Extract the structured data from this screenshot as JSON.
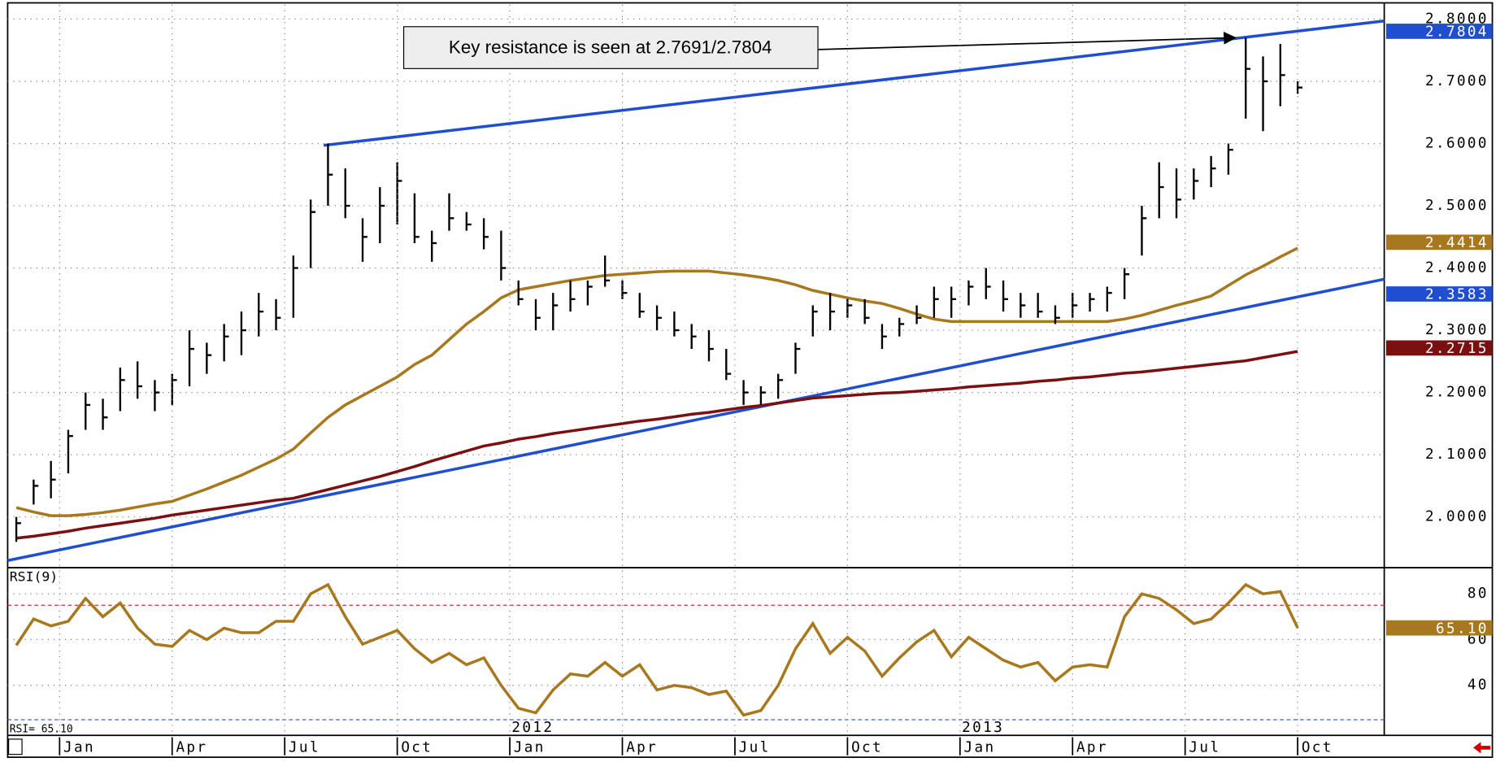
{
  "chart_data": [
    {
      "type": "ohlc",
      "x": [
        -5,
        -3,
        -1,
        1,
        3,
        5,
        7,
        9,
        11,
        13,
        15,
        17,
        19,
        21,
        23,
        25,
        27,
        29,
        31,
        33,
        35,
        37,
        39,
        41,
        43,
        45,
        47,
        49,
        51,
        53,
        55,
        57,
        59,
        61,
        63,
        65,
        67,
        69,
        71,
        73,
        75,
        77,
        79,
        81,
        83,
        85,
        87,
        89,
        91,
        93,
        95,
        97,
        99,
        101,
        103,
        105,
        107,
        109,
        111,
        113,
        115,
        117,
        119,
        121,
        123,
        125,
        127,
        129,
        131,
        133,
        135,
        137,
        139,
        141,
        143
      ],
      "high": [
        2.0,
        2.06,
        2.09,
        2.14,
        2.2,
        2.19,
        2.24,
        2.25,
        2.22,
        2.23,
        2.3,
        2.28,
        2.31,
        2.33,
        2.36,
        2.35,
        2.42,
        2.51,
        2.6,
        2.56,
        2.48,
        2.53,
        2.57,
        2.52,
        2.46,
        2.52,
        2.49,
        2.48,
        2.46,
        2.38,
        2.35,
        2.36,
        2.38,
        2.38,
        2.42,
        2.38,
        2.36,
        2.34,
        2.33,
        2.31,
        2.3,
        2.27,
        2.22,
        2.21,
        2.23,
        2.28,
        2.34,
        2.36,
        2.35,
        2.35,
        2.31,
        2.32,
        2.34,
        2.37,
        2.37,
        2.38,
        2.4,
        2.38,
        2.36,
        2.36,
        2.34,
        2.36,
        2.36,
        2.37,
        2.4,
        2.5,
        2.57,
        2.56,
        2.56,
        2.58,
        2.6,
        2.77,
        2.74,
        2.76,
        2.7
      ],
      "low": [
        1.96,
        2.02,
        2.03,
        2.07,
        2.14,
        2.14,
        2.17,
        2.19,
        2.17,
        2.18,
        2.21,
        2.23,
        2.25,
        2.26,
        2.29,
        2.3,
        2.32,
        2.4,
        2.5,
        2.48,
        2.41,
        2.44,
        2.47,
        2.44,
        2.41,
        2.46,
        2.46,
        2.43,
        2.38,
        2.34,
        2.3,
        2.3,
        2.33,
        2.34,
        2.37,
        2.35,
        2.32,
        2.3,
        2.29,
        2.27,
        2.25,
        2.22,
        2.18,
        2.18,
        2.19,
        2.23,
        2.29,
        2.3,
        2.32,
        2.31,
        2.27,
        2.29,
        2.31,
        2.32,
        2.32,
        2.34,
        2.35,
        2.33,
        2.32,
        2.32,
        2.31,
        2.32,
        2.33,
        2.33,
        2.35,
        2.42,
        2.48,
        2.48,
        2.51,
        2.53,
        2.55,
        2.64,
        2.62,
        2.66,
        2.68
      ],
      "close": [
        1.99,
        2.05,
        2.06,
        2.13,
        2.18,
        2.16,
        2.22,
        2.21,
        2.2,
        2.22,
        2.27,
        2.26,
        2.29,
        2.3,
        2.33,
        2.32,
        2.4,
        2.49,
        2.55,
        2.5,
        2.45,
        2.5,
        2.54,
        2.45,
        2.44,
        2.48,
        2.47,
        2.45,
        2.4,
        2.35,
        2.32,
        2.34,
        2.35,
        2.37,
        2.38,
        2.36,
        2.33,
        2.32,
        2.3,
        2.29,
        2.27,
        2.23,
        2.2,
        2.2,
        2.22,
        2.27,
        2.33,
        2.33,
        2.34,
        2.32,
        2.29,
        2.31,
        2.32,
        2.35,
        2.35,
        2.37,
        2.37,
        2.35,
        2.34,
        2.33,
        2.32,
        2.34,
        2.35,
        2.36,
        2.39,
        2.48,
        2.53,
        2.51,
        2.54,
        2.56,
        2.59,
        2.72,
        2.7,
        2.71,
        2.69
      ],
      "color": "#000000",
      "lines": [
        {
          "color": "#a8781e",
          "values": [
            2.015,
            2.008,
            2.002,
            2.002,
            2.004,
            2.007,
            2.011,
            2.016,
            2.021,
            2.025,
            2.035,
            2.045,
            2.056,
            2.067,
            2.08,
            2.093,
            2.109,
            2.135,
            2.16,
            2.18,
            2.195,
            2.21,
            2.225,
            2.245,
            2.26,
            2.285,
            2.31,
            2.33,
            2.352,
            2.365,
            2.37,
            2.375,
            2.38,
            2.384,
            2.388,
            2.39,
            2.392,
            2.394,
            2.395,
            2.395,
            2.395,
            2.392,
            2.389,
            2.385,
            2.38,
            2.373,
            2.364,
            2.358,
            2.352,
            2.347,
            2.343,
            2.335,
            2.326,
            2.318,
            2.314,
            2.314,
            2.314,
            2.314,
            2.314,
            2.314,
            2.314,
            2.314,
            2.314,
            2.314,
            2.318,
            2.324,
            2.332,
            2.34,
            2.347,
            2.355,
            2.372,
            2.389,
            2.403,
            2.418,
            2.432
          ]
        },
        {
          "color": "#7a1010",
          "values": [
            1.966,
            1.969,
            1.973,
            1.977,
            1.982,
            1.986,
            1.99,
            1.994,
            1.998,
            2.003,
            2.007,
            2.011,
            2.015,
            2.019,
            2.023,
            2.027,
            2.03,
            2.037,
            2.044,
            2.051,
            2.058,
            2.065,
            2.073,
            2.081,
            2.09,
            2.098,
            2.106,
            2.114,
            2.119,
            2.125,
            2.129,
            2.134,
            2.138,
            2.142,
            2.146,
            2.15,
            2.154,
            2.157,
            2.161,
            2.165,
            2.168,
            2.172,
            2.176,
            2.179,
            2.183,
            2.187,
            2.191,
            2.193,
            2.195,
            2.197,
            2.199,
            2.2,
            2.202,
            2.204,
            2.206,
            2.209,
            2.211,
            2.213,
            2.215,
            2.218,
            2.22,
            2.223,
            2.225,
            2.228,
            2.231,
            2.233,
            2.236,
            2.239,
            2.242,
            2.245,
            2.248,
            2.251,
            2.256,
            2.261,
            2.266
          ]
        }
      ],
      "trendlines": [
        {
          "color": "#1f4fd0",
          "x": [
            30.5,
            153
          ],
          "values": [
            2.597,
            2.797
          ]
        },
        {
          "color": "#1f4fd0",
          "x": [
            -6,
            153
          ],
          "values": [
            1.93,
            2.382
          ]
        }
      ],
      "xlim": [
        -6,
        153
      ],
      "ylim": [
        1.92,
        2.823
      ],
      "yticks": [
        {
          "value": 2.0,
          "label": "2.0000"
        },
        {
          "value": 2.1,
          "label": "2.1000"
        },
        {
          "value": 2.2,
          "label": "2.2000"
        },
        {
          "value": 2.3,
          "label": "2.3000"
        },
        {
          "value": 2.4,
          "label": "2.4000"
        },
        {
          "value": 2.5,
          "label": "2.5000"
        },
        {
          "value": 2.6,
          "label": "2.6000"
        },
        {
          "value": 2.7,
          "label": "2.7000"
        },
        {
          "value": 2.8,
          "label": "2.8000"
        }
      ],
      "grid": true,
      "price_tags": [
        {
          "value": 2.7804,
          "label": "2.7804",
          "color": "#1f4fd0"
        },
        {
          "value": 2.4414,
          "label": "2.4414",
          "color": "#a8781e"
        },
        {
          "value": 2.3583,
          "label": "2.3583",
          "color": "#1f4fd0"
        },
        {
          "value": 2.2715,
          "label": "2.2715",
          "color": "#7a1010"
        }
      ],
      "annotation": {
        "text": "Key resistance is seen at 2.7691/2.7804",
        "x": 135.8,
        "y": 2.77
      }
    },
    {
      "type": "line",
      "title": "RSI(9)",
      "readout": "RSI= 65.10",
      "x": [
        -5,
        -3,
        -1,
        1,
        3,
        5,
        7,
        9,
        11,
        13,
        15,
        17,
        19,
        21,
        23,
        25,
        27,
        29,
        31,
        33,
        35,
        37,
        39,
        41,
        43,
        45,
        47,
        49,
        51,
        53,
        55,
        57,
        59,
        61,
        63,
        65,
        67,
        69,
        71,
        73,
        75,
        77,
        79,
        81,
        83,
        85,
        87,
        89,
        91,
        93,
        95,
        97,
        99,
        101,
        103,
        105,
        107,
        109,
        111,
        113,
        115,
        117,
        119,
        121,
        123,
        125,
        127,
        129,
        131,
        133,
        135,
        137,
        139,
        141,
        143
      ],
      "values": [
        57.5,
        69,
        66,
        68,
        78,
        70,
        76,
        65,
        58,
        57,
        64,
        60,
        65,
        63,
        63,
        68,
        68,
        80,
        84,
        70,
        58,
        61,
        64,
        56,
        50,
        54,
        49,
        52,
        40,
        30,
        28,
        38,
        45,
        44,
        50,
        44,
        49,
        38,
        40,
        39,
        36,
        37.5,
        27,
        29,
        40,
        56,
        67,
        54,
        61,
        55,
        44,
        52,
        59,
        64,
        52.5,
        61,
        56,
        51,
        48,
        50,
        42,
        48,
        49,
        48,
        70,
        80,
        78,
        73,
        67,
        69,
        76,
        84,
        80,
        81,
        65.1
      ],
      "color": "#a8781e",
      "xlim": [
        -6,
        153
      ],
      "ylim": [
        19,
        91
      ],
      "yticks": [
        40,
        60,
        80
      ],
      "grid": true,
      "levels": [
        {
          "value": 75,
          "color": "#d03030"
        },
        {
          "value": 25,
          "color": "#4060d0"
        }
      ],
      "xticks": [
        {
          "value": 0,
          "label": "Jan"
        },
        {
          "value": 13,
          "label": "Apr"
        },
        {
          "value": 26,
          "label": "Jul"
        },
        {
          "value": 39,
          "label": "Oct"
        },
        {
          "value": 52,
          "label": "Jan"
        },
        {
          "value": 65,
          "label": "Apr"
        },
        {
          "value": 78,
          "label": "Jul"
        },
        {
          "value": 91,
          "label": "Oct"
        },
        {
          "value": 104,
          "label": "Jan"
        },
        {
          "value": 117,
          "label": "Apr"
        },
        {
          "value": 130,
          "label": "Jul"
        },
        {
          "value": 143,
          "label": "Oct"
        }
      ],
      "annotations": [
        {
          "text": "2012",
          "x": 52
        },
        {
          "text": "2013",
          "x": 104
        }
      ],
      "price_tags": [
        {
          "value": 65.1,
          "label": "65.10",
          "color": "#a8781e"
        }
      ]
    }
  ]
}
